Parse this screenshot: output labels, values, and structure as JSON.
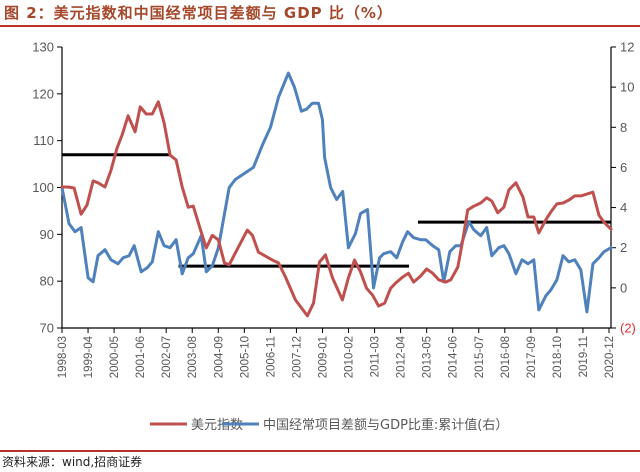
{
  "title": "图 2：美元指数和中国经常项目差额与 GDP 比（%）",
  "source": "资料来源：wind,招商证券",
  "colors": {
    "title": "#a5472a",
    "rule": "#b8322c",
    "usd_series": "#c0504d",
    "ca_series": "#4f81bd",
    "average_line": "#000000",
    "negative_tick": "#e03030",
    "axis_text": "#595959"
  },
  "chart_data": {
    "type": "line",
    "title": "美元指数和中国经常项目差额与 GDP 比（%）",
    "xlabel": "",
    "ylabel": "",
    "ylabel_right": "",
    "x_unit": "decimal year",
    "xlim": [
      1998.17,
      2020.92
    ],
    "ylim": [
      70,
      130
    ],
    "ylim_right": [
      -2,
      12
    ],
    "grid": false,
    "legend_position": "bottom",
    "y_ticks": [
      "70",
      "80",
      "90",
      "100",
      "110",
      "120",
      "130"
    ],
    "y_ticks_right": [
      "(2)",
      "0",
      "2",
      "4",
      "6",
      "8",
      "10",
      "12"
    ],
    "x_tick_labels": [
      "1998-03",
      "1999-04",
      "2000-05",
      "2001-06",
      "2002-07",
      "2003-08",
      "2004-09",
      "2005-10",
      "2006-11",
      "2007-12",
      "2009-01",
      "2010-02",
      "2011-03",
      "2012-04",
      "2013-05",
      "2014-06",
      "2015-07",
      "2016-08",
      "2017-09",
      "2018-10",
      "2019-11",
      "2020-12"
    ],
    "series": [
      {
        "name": "美元指数",
        "axis": "left",
        "x": [
          1998.17,
          1998.42,
          1998.67,
          1998.96,
          1999.21,
          1999.46,
          1999.66,
          1999.95,
          2000.2,
          2000.45,
          2000.66,
          2000.91,
          2001.2,
          2001.41,
          2001.66,
          2001.91,
          2002.16,
          2002.4,
          2002.65,
          2002.9,
          2003.15,
          2003.4,
          2003.61,
          2003.9,
          2004.15,
          2004.4,
          2004.65,
          2004.9,
          2005.1,
          2005.31,
          2005.85,
          2006.06,
          2006.31,
          2006.89,
          2007.14,
          2007.43,
          2007.84,
          2008.34,
          2008.59,
          2008.84,
          2009.09,
          2009.38,
          2009.79,
          2010.04,
          2010.29,
          2010.54,
          2010.79,
          2011.04,
          2011.29,
          2011.54,
          2011.79,
          2012.0,
          2012.29,
          2012.53,
          2012.74,
          2013.03,
          2013.28,
          2013.53,
          2013.78,
          2014.07,
          2014.28,
          2014.57,
          2014.78,
          2014.98,
          2015.23,
          2015.52,
          2015.77,
          2015.98,
          2016.23,
          2016.48,
          2016.69,
          2016.98,
          2017.27,
          2017.48,
          2017.72,
          2017.93,
          2018.22,
          2018.43,
          2018.68,
          2018.93,
          2019.17,
          2019.42,
          2019.67,
          2019.92,
          2020.17,
          2020.42,
          2020.63,
          2020.92
        ],
        "values": [
          100.1,
          100.1,
          99.9,
          94.3,
          96.3,
          101.4,
          101.0,
          100.1,
          103.7,
          108.4,
          111.2,
          115.3,
          111.9,
          117.2,
          115.7,
          115.7,
          118.3,
          113.8,
          106.9,
          105.9,
          100.1,
          95.8,
          96.0,
          91.1,
          87.1,
          89.8,
          88.8,
          83.9,
          83.5,
          85.6,
          90.9,
          89.8,
          86.2,
          84.5,
          83.9,
          80.9,
          76.0,
          72.6,
          75.3,
          84.1,
          85.6,
          80.7,
          76.0,
          80.7,
          84.5,
          82.0,
          78.5,
          77.0,
          74.7,
          75.3,
          78.5,
          79.6,
          80.9,
          81.7,
          79.8,
          81.1,
          82.6,
          81.7,
          80.3,
          79.8,
          80.3,
          83.0,
          88.8,
          95.2,
          96.0,
          96.7,
          97.8,
          97.1,
          94.6,
          95.8,
          99.5,
          101.0,
          98.0,
          93.7,
          93.7,
          90.3,
          93.1,
          94.8,
          96.5,
          96.7,
          97.3,
          98.2,
          98.2,
          98.6,
          99.0,
          94.1,
          92.6,
          91.1
        ]
      },
      {
        "name": "中国经常项目差额与GDP比重:累计值(右）",
        "axis": "right",
        "x": [
          1998.17,
          1998.46,
          1998.71,
          1998.96,
          1999.25,
          1999.46,
          1999.66,
          1999.95,
          2000.2,
          2000.49,
          2000.7,
          2000.95,
          2001.16,
          2001.45,
          2001.7,
          2001.91,
          2002.16,
          2002.4,
          2002.65,
          2002.9,
          2003.15,
          2003.4,
          2003.61,
          2003.94,
          2004.15,
          2004.4,
          2004.65,
          2005.1,
          2005.35,
          2006.1,
          2006.47,
          2006.81,
          2007.14,
          2007.55,
          2007.8,
          2008.09,
          2008.3,
          2008.55,
          2008.8,
          2008.96,
          2009.05,
          2009.3,
          2009.55,
          2009.8,
          2010.04,
          2010.33,
          2010.54,
          2010.83,
          2011.08,
          2011.33,
          2011.5,
          2011.79,
          2012.04,
          2012.29,
          2012.49,
          2012.74,
          2013.03,
          2013.24,
          2013.53,
          2013.78,
          2013.99,
          2014.24,
          2014.49,
          2014.7,
          2015.03,
          2015.23,
          2015.52,
          2015.77,
          2015.98,
          2016.27,
          2016.48,
          2016.69,
          2016.98,
          2017.23,
          2017.48,
          2017.72,
          2017.93,
          2018.22,
          2018.43,
          2018.68,
          2018.93,
          2019.17,
          2019.42,
          2019.67,
          2019.92,
          2020.17,
          2020.42,
          2020.63,
          2020.92
        ],
        "values": [
          5.0,
          3.2,
          2.8,
          3.0,
          0.5,
          0.3,
          1.6,
          1.9,
          1.4,
          1.2,
          1.5,
          1.6,
          2.1,
          0.8,
          1.0,
          1.3,
          2.8,
          2.1,
          2.0,
          2.4,
          0.7,
          1.5,
          1.7,
          2.6,
          0.8,
          1.1,
          2.0,
          5.0,
          5.4,
          6.0,
          7.1,
          8.0,
          9.5,
          10.7,
          10.0,
          8.8,
          8.9,
          9.2,
          9.2,
          8.4,
          6.5,
          5.0,
          4.4,
          4.8,
          2.0,
          2.7,
          3.7,
          3.9,
          0.0,
          1.5,
          1.7,
          1.8,
          1.5,
          2.3,
          2.8,
          2.5,
          2.4,
          2.4,
          2.1,
          1.9,
          0.3,
          1.8,
          2.1,
          2.1,
          3.3,
          2.9,
          2.6,
          3.0,
          1.6,
          2.0,
          2.1,
          1.7,
          0.7,
          1.4,
          1.2,
          1.4,
          -1.1,
          -0.4,
          -0.1,
          0.4,
          1.6,
          1.3,
          1.4,
          0.9,
          -1.2,
          1.2,
          1.5,
          1.8,
          2.0
        ]
      }
    ],
    "average_lines": [
      {
        "axis": "left",
        "value": 107.0,
        "x_start": 1998.17,
        "x_end": 2002.65
      },
      {
        "axis": "left",
        "value": 83.2,
        "x_start": 2003.0,
        "x_end": 2012.55
      },
      {
        "axis": "left",
        "value": 92.6,
        "x_start": 2012.92,
        "x_end": 2020.92
      }
    ]
  }
}
